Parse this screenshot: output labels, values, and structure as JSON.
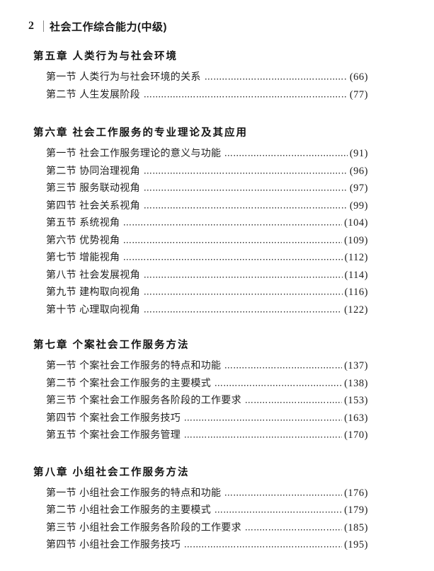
{
  "header": {
    "folio": "2",
    "book_title": "社会工作综合能力(中级)"
  },
  "colors": {
    "text": "#1f1f1f",
    "leader_dots": "#3a3a3a",
    "header_divider": "#8c8c8c",
    "background": "#ffffff"
  },
  "toc": {
    "chapters": [
      {
        "title": "第五章 人类行为与社会环境",
        "sections": [
          {
            "label": "第一节 人类行为与社会环境的关系",
            "page": "(66)"
          },
          {
            "label": "第二节 人生发展阶段",
            "page": "(77)"
          }
        ]
      },
      {
        "title": "第六章 社会工作服务的专业理论及其应用",
        "sections": [
          {
            "label": "第一节 社会工作服务理论的意义与功能",
            "page": "(91)"
          },
          {
            "label": "第二节 协同治理视角",
            "page": "(96)"
          },
          {
            "label": "第三节 服务联动视角",
            "page": "(97)"
          },
          {
            "label": "第四节 社会关系视角",
            "page": "(99)"
          },
          {
            "label": "第五节 系统视角",
            "page": "(104)"
          },
          {
            "label": "第六节 优势视角",
            "page": "(109)"
          },
          {
            "label": "第七节 增能视角",
            "page": "(112)"
          },
          {
            "label": "第八节 社会发展视角",
            "page": "(114)"
          },
          {
            "label": "第九节 建构取向视角",
            "page": "(116)"
          },
          {
            "label": "第十节 心理取向视角",
            "page": "(122)"
          }
        ]
      },
      {
        "title": "第七章 个案社会工作服务方法",
        "sections": [
          {
            "label": "第一节 个案社会工作服务的特点和功能",
            "page": "(137)"
          },
          {
            "label": "第二节 个案社会工作服务的主要模式",
            "page": "(138)"
          },
          {
            "label": "第三节 个案社会工作服务各阶段的工作要求",
            "page": "(153)"
          },
          {
            "label": "第四节 个案社会工作服务技巧",
            "page": "(163)"
          },
          {
            "label": "第五节 个案社会工作服务管理",
            "page": "(170)"
          }
        ]
      },
      {
        "title": "第八章 小组社会工作服务方法",
        "sections": [
          {
            "label": "第一节 小组社会工作服务的特点和功能",
            "page": "(176)"
          },
          {
            "label": "第二节 小组社会工作服务的主要模式",
            "page": "(179)"
          },
          {
            "label": "第三节 小组社会工作服务各阶段的工作要求",
            "page": "(185)"
          },
          {
            "label": "第四节 小组社会工作服务技巧",
            "page": "(195)"
          }
        ]
      }
    ]
  }
}
